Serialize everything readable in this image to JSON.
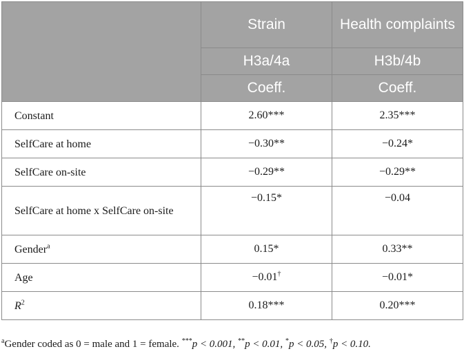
{
  "table": {
    "header": {
      "strain": "Strain",
      "health_complaints": "Health complaints",
      "hyp_strain": "H3a/4a",
      "hyp_health": "H3b/4b",
      "coeff_strain": "Coeff.",
      "coeff_health": "Coeff."
    },
    "rows": [
      {
        "label": "Constant",
        "sup": "",
        "strain": "2.60***",
        "strain_sup": "",
        "health": "2.35***",
        "health_sup": ""
      },
      {
        "label": "SelfCare at home",
        "sup": "",
        "strain": "−0.30**",
        "strain_sup": "",
        "health": "−0.24*",
        "health_sup": ""
      },
      {
        "label": "SelfCare on-site",
        "sup": "",
        "strain": "−0.29**",
        "strain_sup": "",
        "health": "−0.29**",
        "health_sup": ""
      },
      {
        "label": "SelfCare at home x SelfCare on-site",
        "sup": "",
        "strain": "−0.15*",
        "strain_sup": "",
        "health": "−0.04",
        "health_sup": ""
      },
      {
        "label": "Gender",
        "sup": "a",
        "strain": "0.15*",
        "strain_sup": "",
        "health": "0.33**",
        "health_sup": ""
      },
      {
        "label": "Age",
        "sup": "",
        "strain": "−0.01",
        "strain_sup": "†",
        "health": "−0.01*",
        "health_sup": ""
      },
      {
        "label": "R",
        "sup": "2",
        "strain": "0.18***",
        "strain_sup": "",
        "health": "0.20***",
        "health_sup": ""
      }
    ]
  },
  "footnote": {
    "marker": "a",
    "text_a": "Gender coded as 0 = male and 1 = female. ",
    "p1": "***",
    "p1_text": "p < 0.001, ",
    "p2": "**",
    "p2_text": "p < 0.01, ",
    "p3": "*",
    "p3_text": "p < 0.05, ",
    "p4": "†",
    "p4_text": "p < 0.10."
  }
}
